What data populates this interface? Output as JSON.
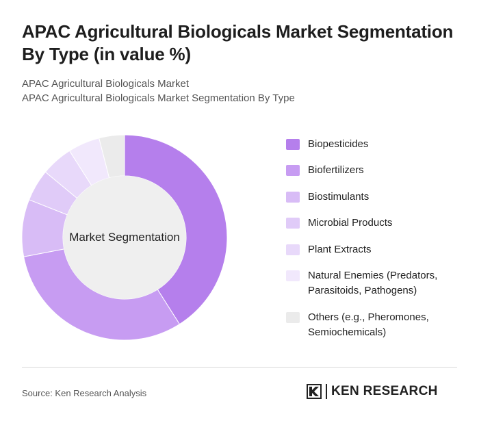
{
  "header": {
    "title": "APAC Agricultural Biologicals Market Segmentation By Type (in value %)",
    "subtitle_1": "APAC Agricultural Biologicals Market",
    "subtitle_2": "APAC Agricultural Biologicals Market Segmentation By Type"
  },
  "chart_data": {
    "type": "pie",
    "variant": "donut",
    "center_label": "Market Segmentation",
    "legend_position": "right",
    "categories": [
      "Biopesticides",
      "Biofertilizers",
      "Biostimulants",
      "Microbial Products",
      "Plant Extracts",
      "Natural Enemies (Predators, Parasitoids, Pathogens)",
      "Others (e.g., Pheromones, Semiochemicals)"
    ],
    "values": [
      41,
      31,
      9,
      5,
      5,
      5,
      4
    ],
    "colors": [
      "#b57fec",
      "#c79cf2",
      "#d8bcf6",
      "#e0cbf8",
      "#e8d9fa",
      "#f1e8fc",
      "#ebebeb"
    ]
  },
  "footer": {
    "source": "Source: Ken Research Analysis",
    "brand": "KEN RESEARCH",
    "brand_icon": "ken-research-logo-icon"
  }
}
